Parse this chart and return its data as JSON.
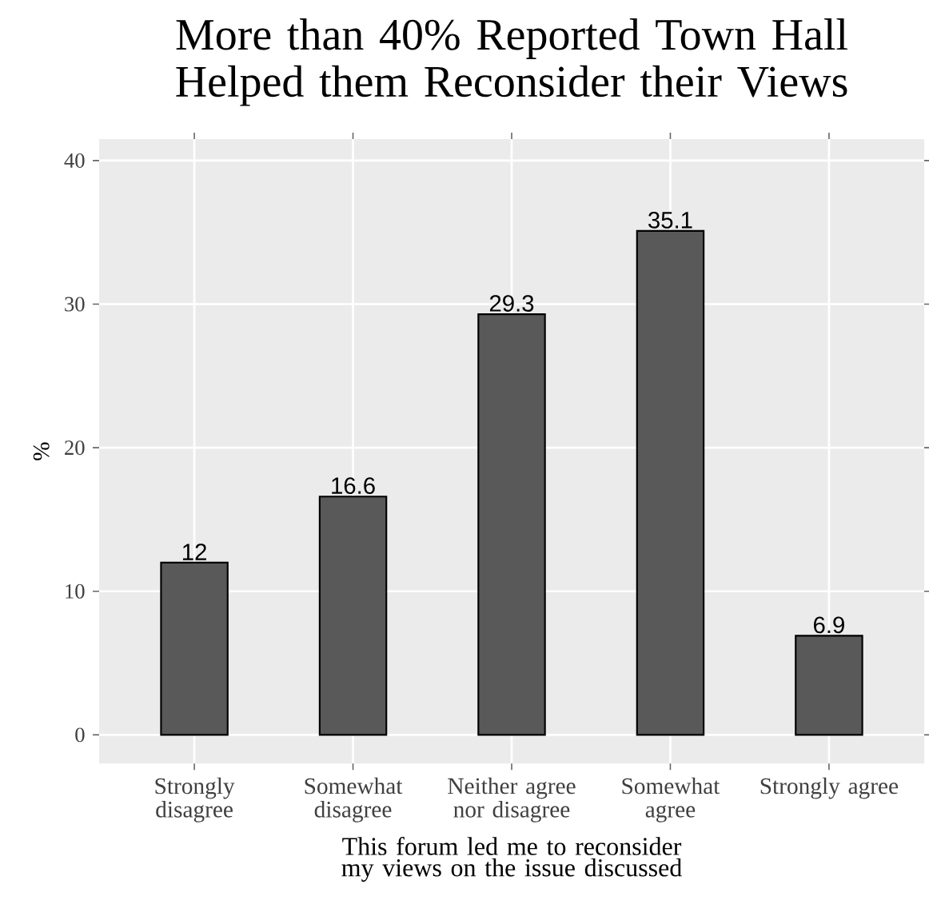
{
  "chart_data": {
    "type": "bar",
    "title": "More than 40% Reported Town Hall Helped them Reconsider their Views",
    "xlabel": "This forum led me to reconsider my views on the issue discussed",
    "ylabel": "%",
    "categories": [
      "Strongly disagree",
      "Somewhat disagree",
      "Neither agree nor disagree",
      "Somewhat agree",
      "Strongly agree"
    ],
    "values": [
      12,
      16.6,
      29.3,
      35.1,
      6.9
    ],
    "color": "#595959",
    "ylim": [
      -2,
      41.5
    ],
    "yticks": [
      0,
      10,
      20,
      30,
      40
    ],
    "grid": true,
    "data_labels": true
  }
}
